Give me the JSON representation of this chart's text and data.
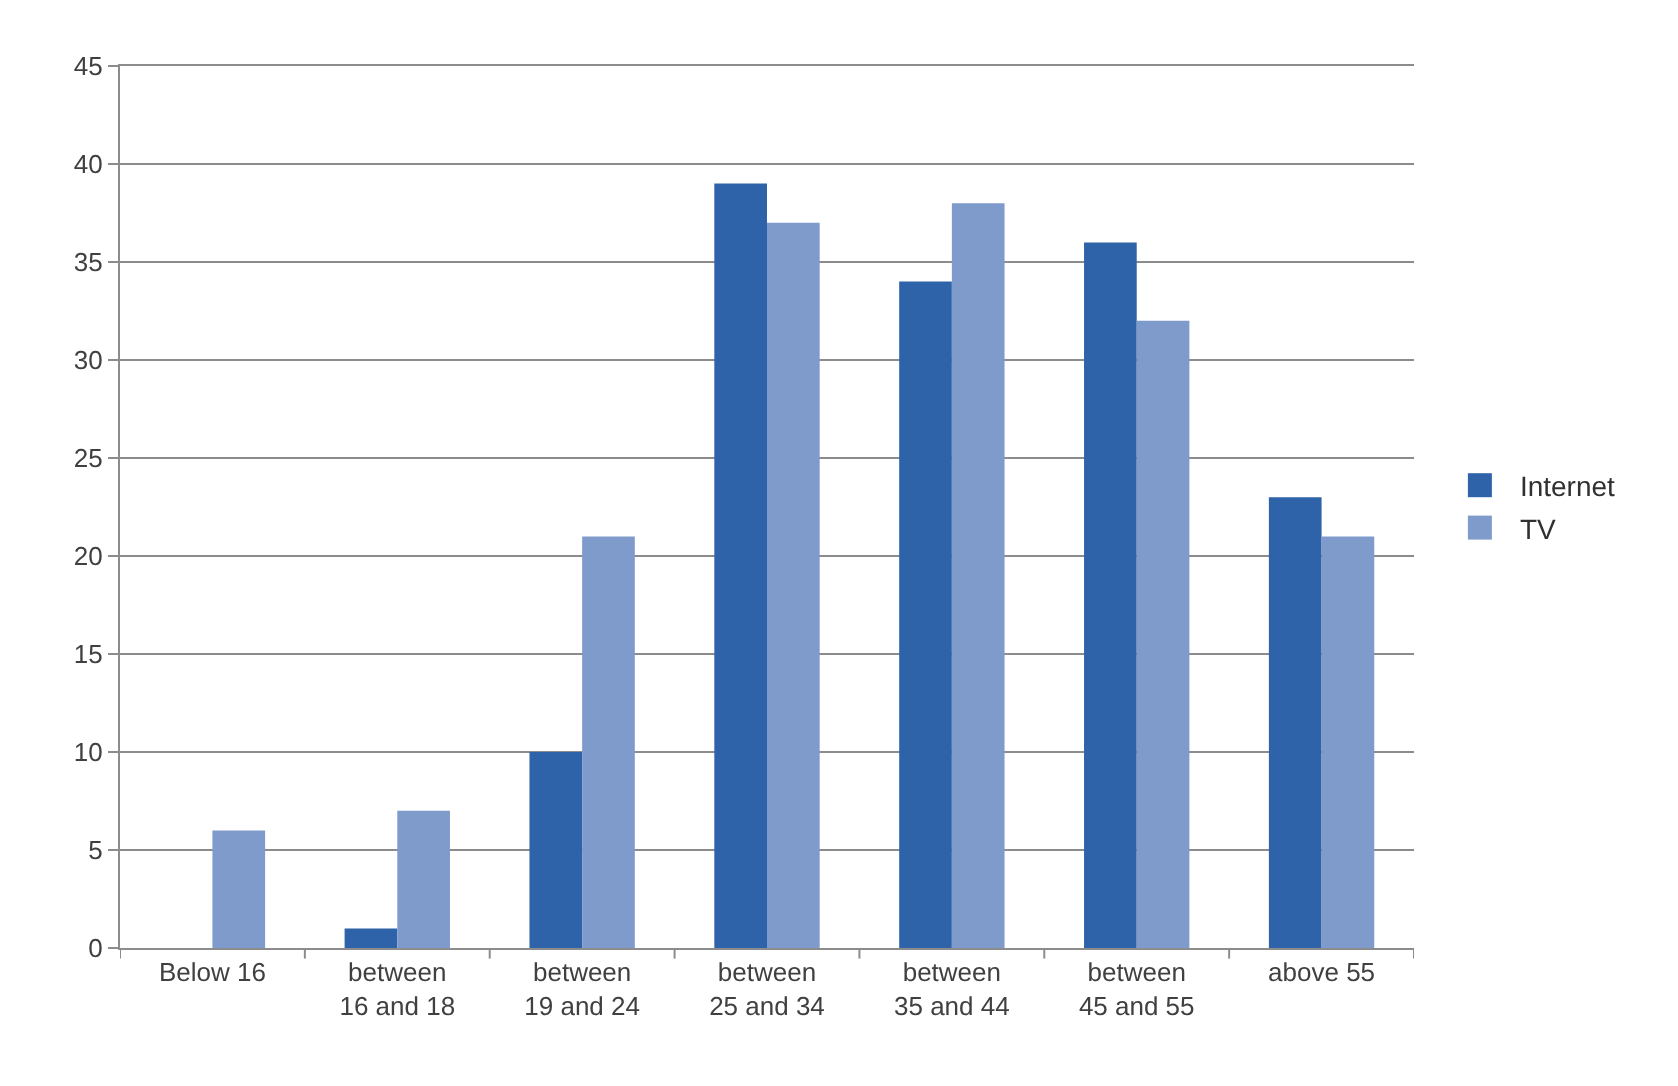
{
  "chart_data": {
    "type": "bar",
    "categories": [
      "Below 16",
      "between\n16 and 18",
      "between\n19 and 24",
      "between\n25 and 34",
      "between\n35 and 44",
      "between\n45 and 55",
      "above 55"
    ],
    "series": [
      {
        "name": "Internet",
        "color": "#2e63a9",
        "values": [
          0,
          1,
          10,
          39,
          34,
          36,
          23
        ]
      },
      {
        "name": "TV",
        "color": "#7f9bcc",
        "values": [
          6,
          7,
          21,
          37,
          38,
          32,
          21
        ]
      }
    ],
    "ylim": [
      0,
      45
    ],
    "yticks": [
      0,
      5,
      10,
      15,
      20,
      25,
      30,
      35,
      40,
      45
    ],
    "grid": "y",
    "legend": "right"
  }
}
